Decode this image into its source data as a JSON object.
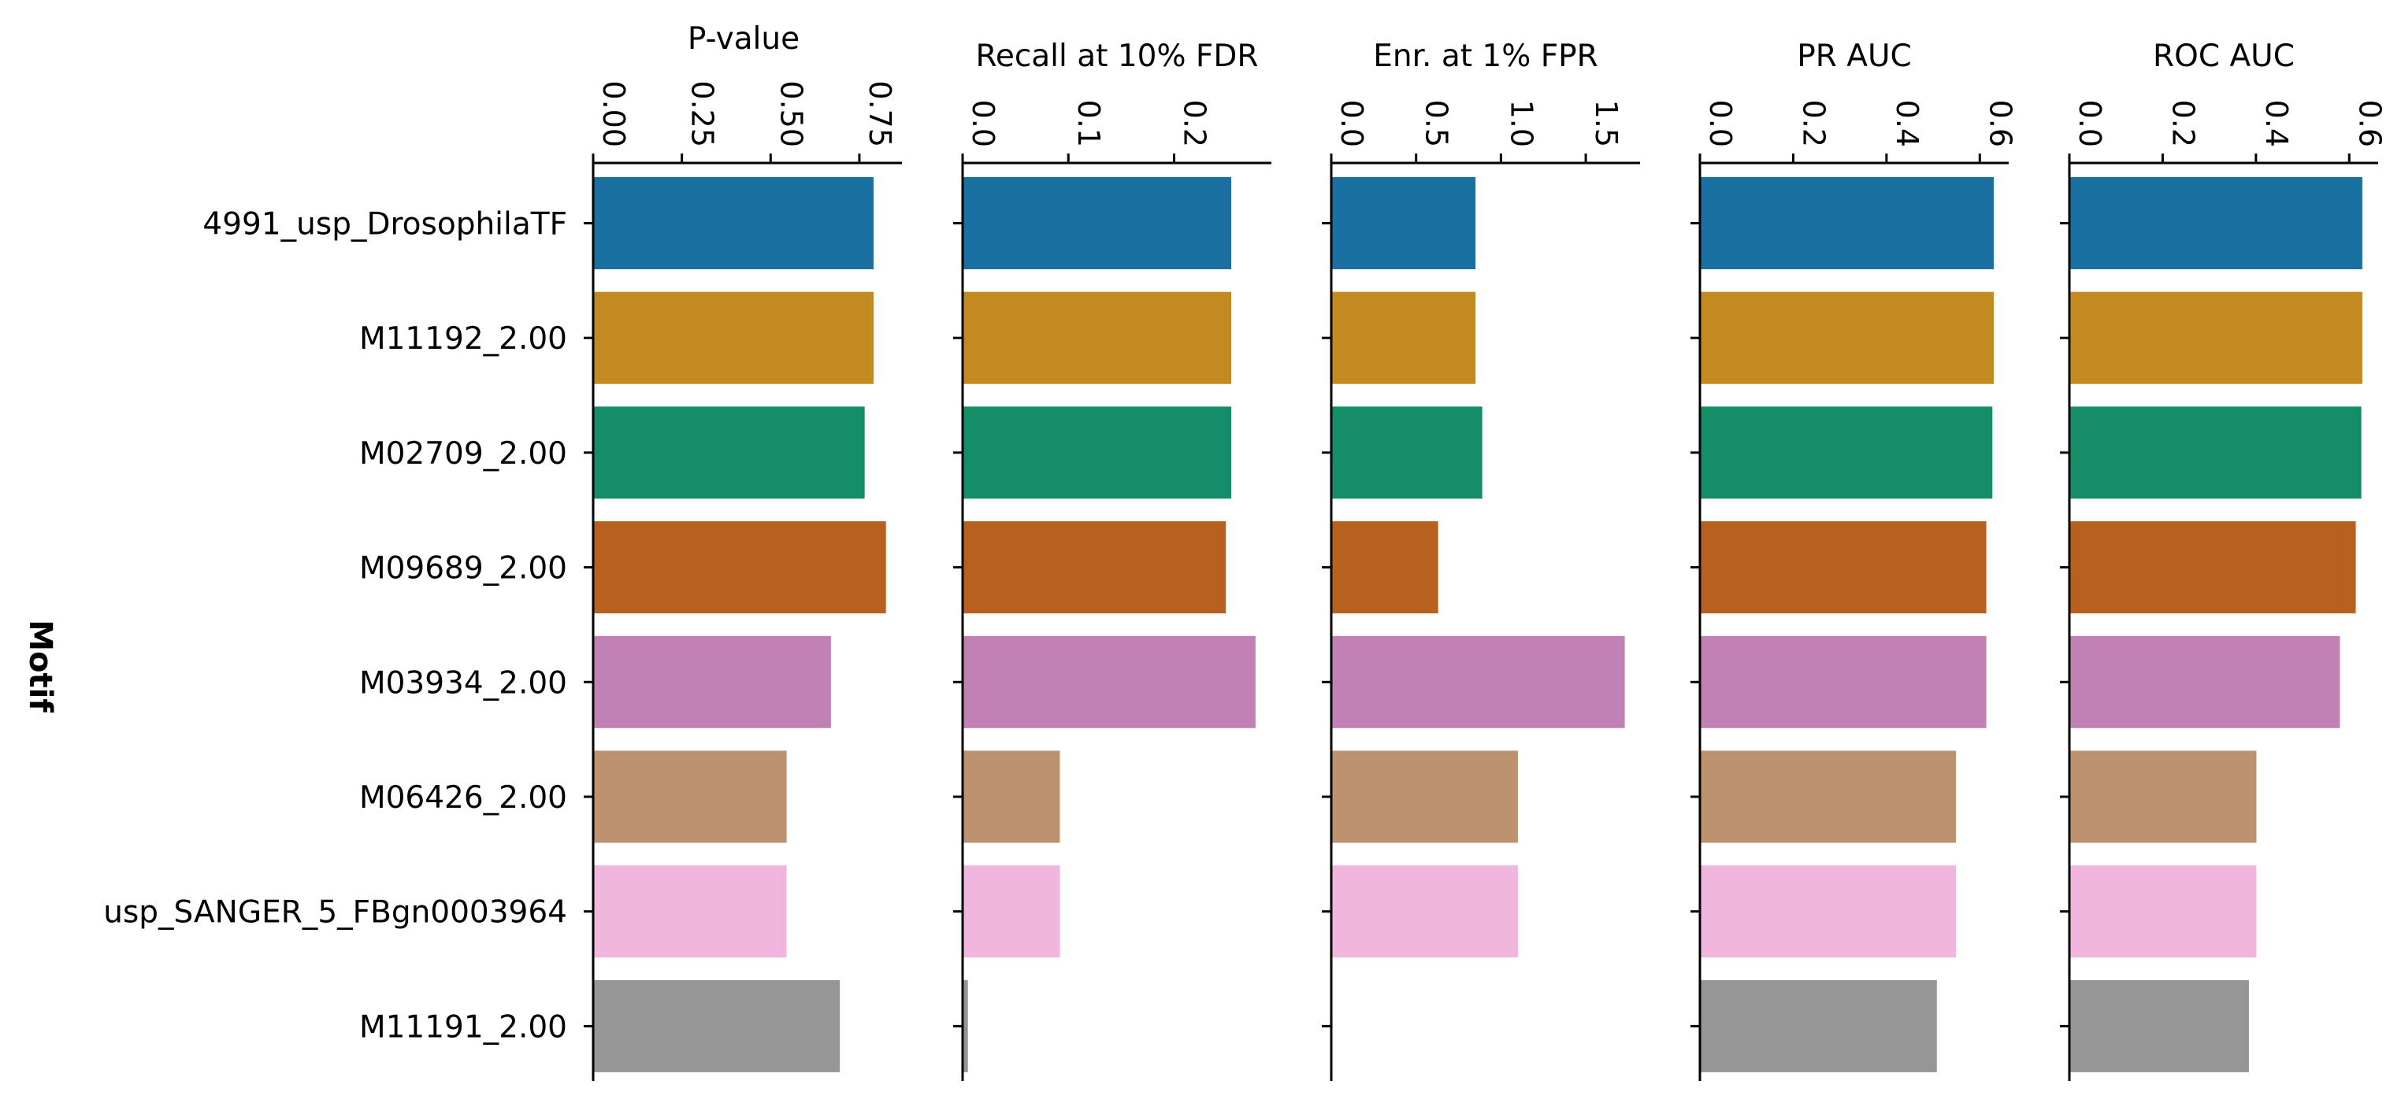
{
  "figure": {
    "ylabel": "Motif",
    "motifs": [
      "4991_usp_DrosophilaTF",
      "M11192_2.00",
      "M02709_2.00",
      "M09689_2.00",
      "M03934_2.00",
      "M06426_2.00",
      "usp_SANGER_5_FBgn0003964",
      "M11191_2.00"
    ],
    "colors": [
      "#1a70a0",
      "#c48a22",
      "#168d69",
      "#b8601f",
      "#c281b5",
      "#bd926f",
      "#f1b6dd",
      "#969696"
    ]
  },
  "chart_data": [
    {
      "type": "bar",
      "orientation": "horizontal",
      "title": "P-value",
      "xlim": [
        0,
        0.87
      ],
      "ticks": [
        0,
        0.25,
        0.5,
        0.75
      ],
      "tick_labels": [
        "0.00",
        "0.25",
        "0.50",
        "0.75"
      ],
      "categories": [
        "4991_usp_DrosophilaTF",
        "M11192_2.00",
        "M02709_2.00",
        "M09689_2.00",
        "M03934_2.00",
        "M06426_2.00",
        "usp_SANGER_5_FBgn0003964",
        "M11191_2.00"
      ],
      "values": [
        0.79,
        0.79,
        0.765,
        0.825,
        0.67,
        0.545,
        0.545,
        0.695
      ]
    },
    {
      "type": "bar",
      "orientation": "horizontal",
      "title": "Recall at 10% FDR",
      "xlim": [
        0,
        0.292
      ],
      "ticks": [
        0,
        0.1,
        0.2
      ],
      "tick_labels": [
        "0.0",
        "0.1",
        "0.2"
      ],
      "categories": [
        "4991_usp_DrosophilaTF",
        "M11192_2.00",
        "M02709_2.00",
        "M09689_2.00",
        "M03934_2.00",
        "M06426_2.00",
        "usp_SANGER_5_FBgn0003964",
        "M11191_2.00"
      ],
      "values": [
        0.254,
        0.254,
        0.254,
        0.249,
        0.277,
        0.092,
        0.092,
        0.005
      ]
    },
    {
      "type": "bar",
      "orientation": "horizontal",
      "title": "Enr. at 1% FPR",
      "xlim": [
        0,
        1.82
      ],
      "ticks": [
        0,
        0.5,
        1.0,
        1.5
      ],
      "tick_labels": [
        "0.0",
        "0.5",
        "1.0",
        "1.5"
      ],
      "categories": [
        "4991_usp_DrosophilaTF",
        "M11192_2.00",
        "M02709_2.00",
        "M09689_2.00",
        "M03934_2.00",
        "M06426_2.00",
        "usp_SANGER_5_FBgn0003964",
        "M11191_2.00"
      ],
      "values": [
        0.85,
        0.85,
        0.89,
        0.63,
        1.73,
        1.1,
        1.1,
        0
      ]
    },
    {
      "type": "bar",
      "orientation": "horizontal",
      "title": "PR AUC",
      "xlim": [
        0,
        0.662
      ],
      "ticks": [
        0,
        0.2,
        0.4,
        0.6
      ],
      "tick_labels": [
        "0.0",
        "0.2",
        "0.4",
        "0.6"
      ],
      "categories": [
        "4991_usp_DrosophilaTF",
        "M11192_2.00",
        "M02709_2.00",
        "M09689_2.00",
        "M03934_2.00",
        "M06426_2.00",
        "usp_SANGER_5_FBgn0003964",
        "M11191_2.00"
      ],
      "values": [
        0.63,
        0.63,
        0.627,
        0.614,
        0.614,
        0.549,
        0.549,
        0.508
      ]
    },
    {
      "type": "bar",
      "orientation": "horizontal",
      "title": "ROC AUC",
      "xlim": [
        0,
        0.662
      ],
      "ticks": [
        0,
        0.2,
        0.4,
        0.6
      ],
      "tick_labels": [
        "0.0",
        "0.2",
        "0.4",
        "0.6"
      ],
      "categories": [
        "4991_usp_DrosophilaTF",
        "M11192_2.00",
        "M02709_2.00",
        "M09689_2.00",
        "M03934_2.00",
        "M06426_2.00",
        "usp_SANGER_5_FBgn0003964",
        "M11191_2.00"
      ],
      "values": [
        0.628,
        0.628,
        0.626,
        0.614,
        0.58,
        0.401,
        0.401,
        0.385
      ]
    }
  ]
}
